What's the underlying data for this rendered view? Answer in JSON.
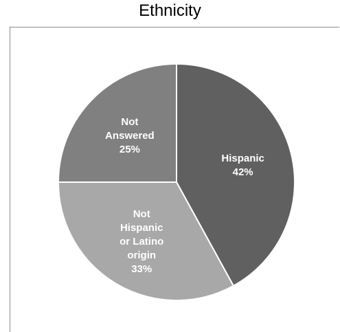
{
  "chart_data": {
    "type": "pie",
    "title": "Ethnicity",
    "slices": [
      {
        "label_lines": [
          "Hispanic"
        ],
        "value": 42,
        "value_label": "42%",
        "color": "#606060"
      },
      {
        "label_lines": [
          "Not",
          "Hispanic",
          "or Latino",
          "origin"
        ],
        "value": 33,
        "value_label": "33%",
        "color": "#a8a8a8"
      },
      {
        "label_lines": [
          "Not",
          "Answered"
        ],
        "value": 25,
        "value_label": "25%",
        "color": "#808080"
      }
    ],
    "legend": "none"
  }
}
